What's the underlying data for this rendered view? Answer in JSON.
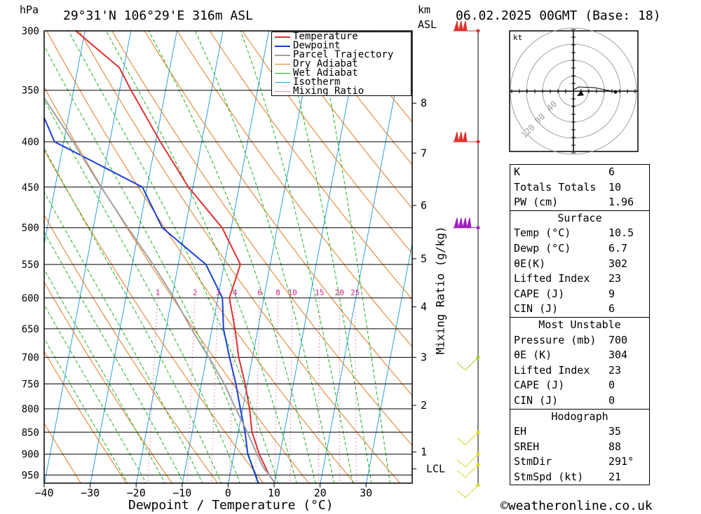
{
  "header": {
    "unit_left": "hPa",
    "location": "29°31'N 106°29'E 316m ASL",
    "unit_km": "km",
    "unit_asl": "ASL",
    "datetime": "06.02.2025 00GMT (Base: 18)"
  },
  "footer": {
    "xlabel": "Dewpoint / Temperature (°C)",
    "ylabel_right": "Mixing Ratio (g/kg)",
    "copyright": "©weatheronline.co.uk"
  },
  "colors": {
    "temperature": "#e03030",
    "dewpoint": "#1a3fd6",
    "parcel": "#a0a0a0",
    "dry_adiabat": "#e07b20",
    "wet_adiabat": "#19b319",
    "isotherm": "#2aa0e0",
    "mixing_ratio": "#d0208a"
  },
  "chart_data": {
    "type": "line",
    "title": "29°31'N 106°29'E 316m ASL",
    "xlabel": "Dewpoint / Temperature (°C)",
    "ylabel": "hPa",
    "xlim": [
      -40,
      40
    ],
    "ylim": [
      975,
      300
    ],
    "y_scale": "log-pressure",
    "skew": "skew-T",
    "pressure_ticks": [
      300,
      350,
      400,
      450,
      500,
      550,
      600,
      650,
      700,
      750,
      800,
      850,
      900,
      950
    ],
    "x_ticks": [
      -40,
      -30,
      -20,
      -10,
      0,
      10,
      20,
      30
    ],
    "km_ticks": [
      {
        "label": "1",
        "p": 895
      },
      {
        "label": "LCL",
        "p": 935
      },
      {
        "label": "2",
        "p": 793
      },
      {
        "label": "3",
        "p": 700
      },
      {
        "label": "4",
        "p": 614
      },
      {
        "label": "5",
        "p": 542
      },
      {
        "label": "6",
        "p": 472
      },
      {
        "label": "7",
        "p": 412
      },
      {
        "label": "8",
        "p": 362
      }
    ],
    "mixing_ratio_labels": [
      "1",
      "2",
      "3",
      "4",
      "6",
      "8",
      "10",
      "15",
      "20",
      "25"
    ],
    "mixing_ratio_values": [
      1,
      2,
      3,
      4,
      6,
      8,
      10,
      15,
      20,
      25
    ],
    "legend": [
      "Temperature",
      "Dewpoint",
      "Parcel Trajectory",
      "Dry Adiabat",
      "Wet Adiabat",
      "Isotherm",
      "Mixing Ratio"
    ],
    "legend_position": "top-right",
    "series": [
      {
        "name": "Temperature",
        "points": [
          [
            975,
            10.5
          ],
          [
            950,
            8.5
          ],
          [
            900,
            5.5
          ],
          [
            850,
            3.0
          ],
          [
            800,
            1.5
          ],
          [
            750,
            -0.5
          ],
          [
            700,
            -3.0
          ],
          [
            650,
            -5.0
          ],
          [
            600,
            -7.5
          ],
          [
            550,
            -6.5
          ],
          [
            500,
            -12.0
          ],
          [
            450,
            -21.0
          ],
          [
            400,
            -29.0
          ],
          [
            350,
            -37.5
          ],
          [
            330,
            -41.0
          ],
          [
            300,
            -52.0
          ]
        ]
      },
      {
        "name": "Dewpoint",
        "points": [
          [
            975,
            6.7
          ],
          [
            950,
            5.5
          ],
          [
            900,
            3.0
          ],
          [
            850,
            1.5
          ],
          [
            800,
            -0.5
          ],
          [
            750,
            -2.5
          ],
          [
            700,
            -5.0
          ],
          [
            650,
            -7.5
          ],
          [
            600,
            -9.0
          ],
          [
            550,
            -14.0
          ],
          [
            500,
            -25.0
          ],
          [
            450,
            -31.0
          ],
          [
            400,
            -52.0
          ],
          [
            350,
            -59.0
          ],
          [
            300,
            -65.0
          ]
        ]
      },
      {
        "name": "Parcel Trajectory",
        "points": [
          [
            975,
            10.5
          ],
          [
            950,
            8.5
          ],
          [
            930,
            6.8
          ],
          [
            900,
            5.0
          ],
          [
            850,
            2.0
          ],
          [
            800,
            -1.5
          ],
          [
            750,
            -5.0
          ],
          [
            700,
            -9.5
          ],
          [
            650,
            -14.5
          ],
          [
            600,
            -19.5
          ],
          [
            550,
            -25.5
          ],
          [
            500,
            -32.5
          ],
          [
            450,
            -40.0
          ],
          [
            400,
            -48.0
          ],
          [
            350,
            -57.5
          ],
          [
            320,
            -63.0
          ]
        ]
      }
    ],
    "wind_barbs_pressures": [
      300,
      400,
      500,
      700,
      850,
      900,
      925,
      975
    ]
  },
  "hodograph": {
    "unit": "kt",
    "ring_labels": [
      "40",
      "80",
      "120"
    ]
  },
  "indices": {
    "k_label": "K",
    "k_value": "6",
    "tt_label": "Totals Totals",
    "tt_value": "10",
    "pw_label": "PW (cm)",
    "pw_value": "1.96"
  },
  "surface": {
    "title": "Surface",
    "temp_label": "Temp (°C)",
    "temp_value": "10.5",
    "dewp_label": "Dewp (°C)",
    "dewp_value": "6.7",
    "thetae_label": "θE(K)",
    "thetae_value": "302",
    "li_label": "Lifted Index",
    "li_value": "23",
    "cape_label": "CAPE (J)",
    "cape_value": "9",
    "cin_label": "CIN (J)",
    "cin_value": "6"
  },
  "most_unstable": {
    "title": "Most Unstable",
    "pressure_label": "Pressure (mb)",
    "pressure_value": "700",
    "thetae_label": "θE (K)",
    "thetae_value": "304",
    "li_label": "Lifted Index",
    "li_value": "23",
    "cape_label": "CAPE (J)",
    "cape_value": "0",
    "cin_label": "CIN (J)",
    "cin_value": "0"
  },
  "hodograph_table": {
    "title": "Hodograph",
    "eh_label": "EH",
    "eh_value": "35",
    "sreh_label": "SREH",
    "sreh_value": "88",
    "stmdir_label": "StmDir",
    "stmdir_value": "291°",
    "stmspd_label": "StmSpd (kt)",
    "stmspd_value": "21"
  }
}
